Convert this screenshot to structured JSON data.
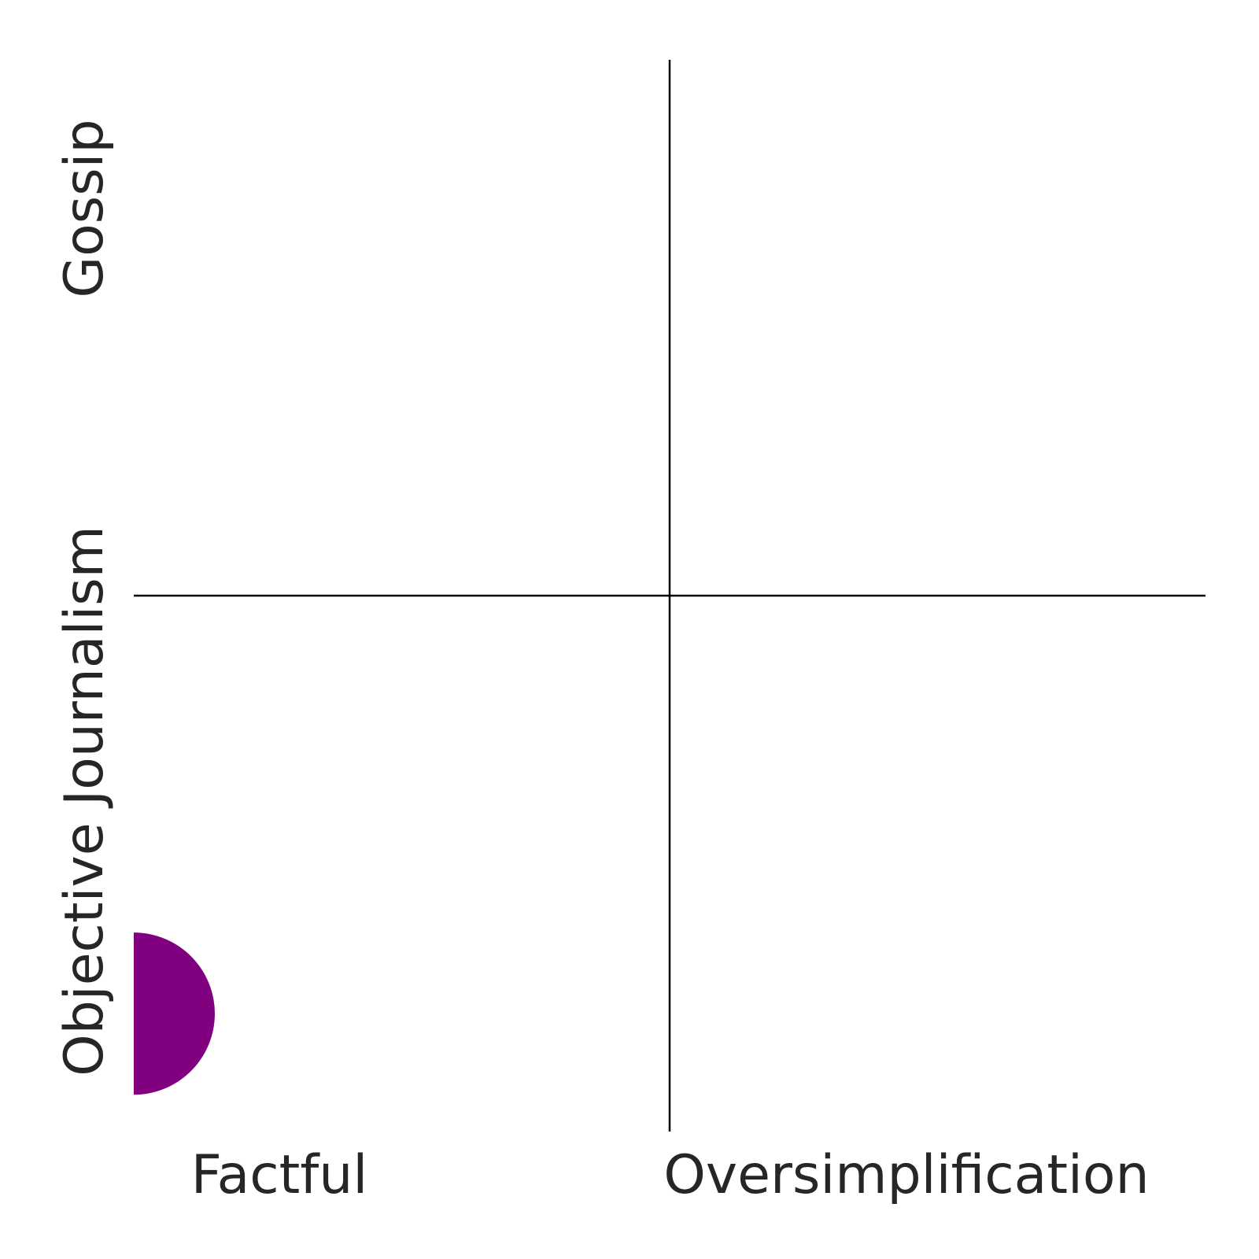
{
  "chart_data": {
    "type": "scatter",
    "title": "",
    "x_labels": [
      "Factful",
      "Oversimplification"
    ],
    "y_labels": [
      "Objective Journalism",
      "Gossip"
    ],
    "xlim": [
      0,
      1
    ],
    "ylim": [
      0,
      1
    ],
    "dividers": {
      "x": 0.5,
      "y": 0.5
    },
    "grid": false,
    "points": [
      {
        "x": 0.0,
        "y": 0.11,
        "color": "#800080"
      }
    ]
  }
}
